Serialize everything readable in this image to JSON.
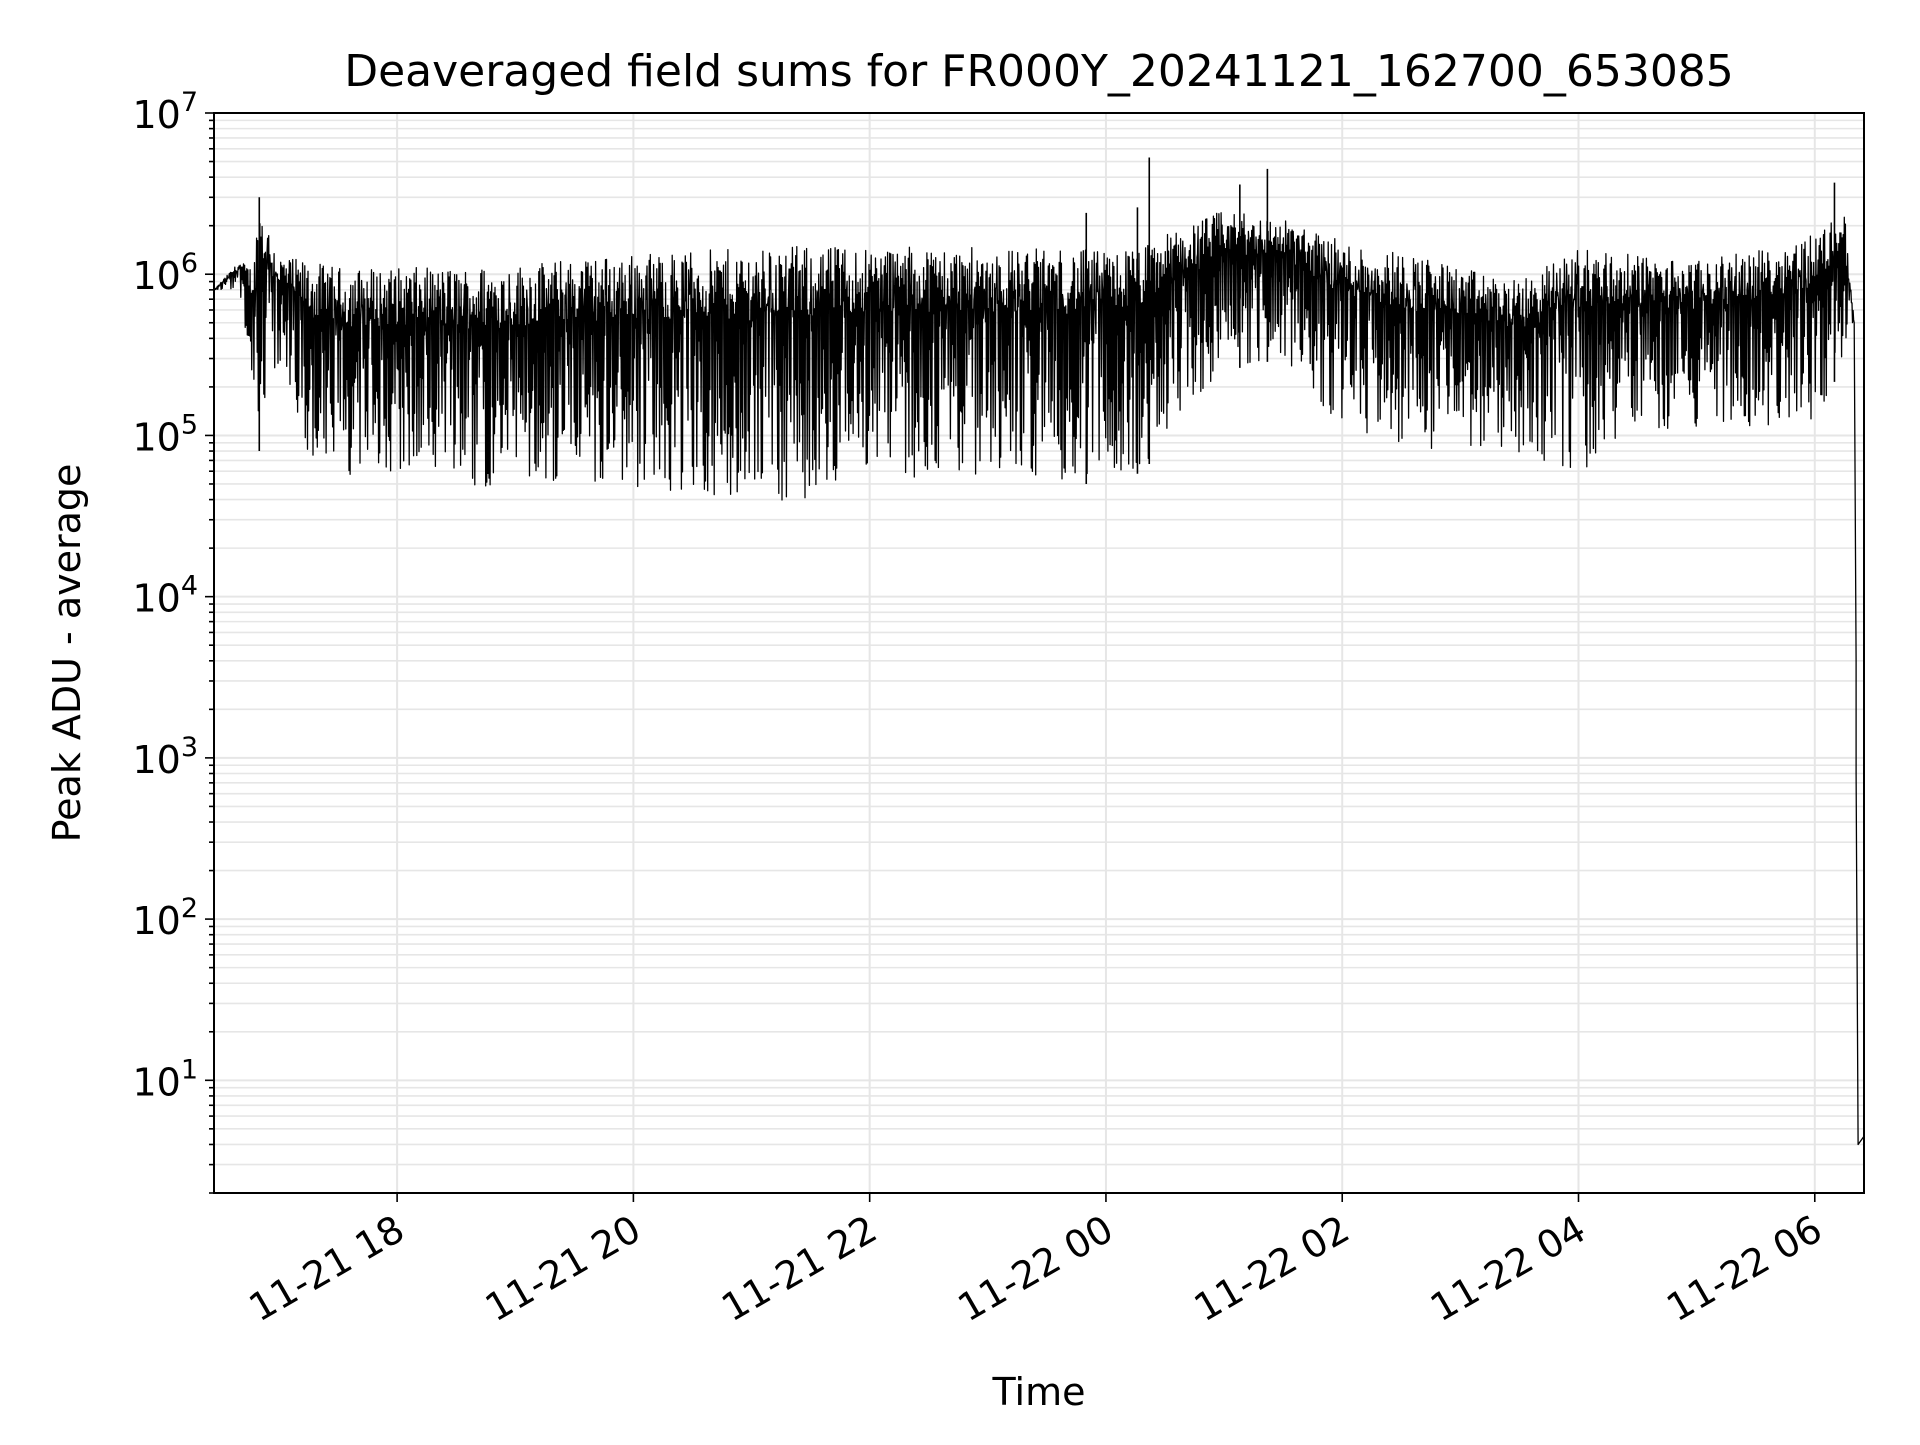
{
  "chart_data": {
    "type": "line",
    "title": "Deaveraged field sums for FR000Y_20241121_162700_653085",
    "xlabel": "Time",
    "ylabel": "Peak ADU - average",
    "yscale": "log",
    "grid": true,
    "legend": "none",
    "xlim": [
      "2024-11-21 16:27",
      "2024-11-22 06:25"
    ],
    "ylim": [
      2,
      10000000
    ],
    "x_ticks": [
      "11-21 18",
      "11-21 20",
      "11-21 22",
      "11-22 00",
      "11-22 02",
      "11-22 04",
      "11-22 06"
    ],
    "y_ticks": [
      {
        "base": "10",
        "exp": "1"
      },
      {
        "base": "10",
        "exp": "2"
      },
      {
        "base": "10",
        "exp": "3"
      },
      {
        "base": "10",
        "exp": "4"
      },
      {
        "base": "10",
        "exp": "5"
      },
      {
        "base": "10",
        "exp": "6"
      },
      {
        "base": "10",
        "exp": "7"
      }
    ],
    "series": [
      {
        "color": "#000000",
        "points": [
          {
            "x": "2024-11-21 16:27",
            "upper": 800000,
            "lower": 800000
          },
          {
            "x": "2024-11-21 16:40",
            "upper": 1200000,
            "lower": 800000
          },
          {
            "x": "2024-11-21 16:47",
            "upper": 1100000,
            "lower": 200000
          },
          {
            "x": "2024-11-21 16:50",
            "upper": 3000000,
            "lower": 80000
          },
          {
            "x": "2024-11-21 17:00",
            "upper": 1300000,
            "lower": 250000
          },
          {
            "x": "2024-11-21 17:15",
            "upper": 1200000,
            "lower": 60000
          },
          {
            "x": "2024-11-21 17:30",
            "upper": 1100000,
            "lower": 50000
          },
          {
            "x": "2024-11-21 18:00",
            "upper": 1100000,
            "lower": 55000
          },
          {
            "x": "2024-11-21 18:30",
            "upper": 1100000,
            "lower": 45000
          },
          {
            "x": "2024-11-21 19:00",
            "upper": 1150000,
            "lower": 45000
          },
          {
            "x": "2024-11-21 19:30",
            "upper": 1250000,
            "lower": 48000
          },
          {
            "x": "2024-11-21 20:00",
            "upper": 1350000,
            "lower": 45000
          },
          {
            "x": "2024-11-21 20:30",
            "upper": 1400000,
            "lower": 40000
          },
          {
            "x": "2024-11-21 21:00",
            "upper": 1450000,
            "lower": 35000
          },
          {
            "x": "2024-11-21 21:30",
            "upper": 1500000,
            "lower": 35000
          },
          {
            "x": "2024-11-21 22:00",
            "upper": 1500000,
            "lower": 50000
          },
          {
            "x": "2024-11-21 22:30",
            "upper": 1500000,
            "lower": 50000
          },
          {
            "x": "2024-11-21 23:00",
            "upper": 1450000,
            "lower": 55000
          },
          {
            "x": "2024-11-21 23:30",
            "upper": 1450000,
            "lower": 50000
          },
          {
            "x": "2024-11-22 00:00",
            "upper": 1400000,
            "lower": 50000
          },
          {
            "x": "2024-11-22 00:20",
            "upper": 1500000,
            "lower": 60000
          },
          {
            "x": "2024-11-22 00:30",
            "upper": 1800000,
            "lower": 100000
          },
          {
            "x": "2024-11-22 01:00",
            "upper": 2500000,
            "lower": 250000
          },
          {
            "x": "2024-11-22 01:30",
            "upper": 2200000,
            "lower": 300000
          },
          {
            "x": "2024-11-22 02:00",
            "upper": 1600000,
            "lower": 100000
          },
          {
            "x": "2024-11-22 02:30",
            "upper": 1400000,
            "lower": 70000
          },
          {
            "x": "2024-11-22 03:00",
            "upper": 1100000,
            "lower": 80000
          },
          {
            "x": "2024-11-22 03:30",
            "upper": 900000,
            "lower": 70000
          },
          {
            "x": "2024-11-22 04:00",
            "upper": 1500000,
            "lower": 55000
          },
          {
            "x": "2024-11-22 04:30",
            "upper": 1300000,
            "lower": 100000
          },
          {
            "x": "2024-11-22 05:00",
            "upper": 1200000,
            "lower": 100000
          },
          {
            "x": "2024-11-22 05:30",
            "upper": 1400000,
            "lower": 110000
          },
          {
            "x": "2024-11-22 06:00",
            "upper": 1800000,
            "lower": 110000
          },
          {
            "x": "2024-11-22 06:15",
            "upper": 2500000,
            "lower": 300000
          },
          {
            "x": "2024-11-22 06:20",
            "upper": 500000,
            "lower": 500000
          },
          {
            "x": "2024-11-22 06:21",
            "upper": 4000,
            "lower": 800
          },
          {
            "x": "2024-11-22 06:22",
            "upper": 4,
            "lower": 4
          },
          {
            "x": "2024-11-22 06:25",
            "upper": 4.5,
            "lower": 4
          }
        ],
        "spikes": [
          {
            "x": "2024-11-21 16:50",
            "value": 3000000
          },
          {
            "x": "2024-11-21 23:50",
            "value": 2400000
          },
          {
            "x": "2024-11-22 00:16",
            "value": 2600000
          },
          {
            "x": "2024-11-22 00:22",
            "value": 5300000
          },
          {
            "x": "2024-11-22 01:08",
            "value": 3600000
          },
          {
            "x": "2024-11-22 01:22",
            "value": 4500000
          },
          {
            "x": "2024-11-22 06:10",
            "value": 3700000
          }
        ]
      }
    ]
  }
}
